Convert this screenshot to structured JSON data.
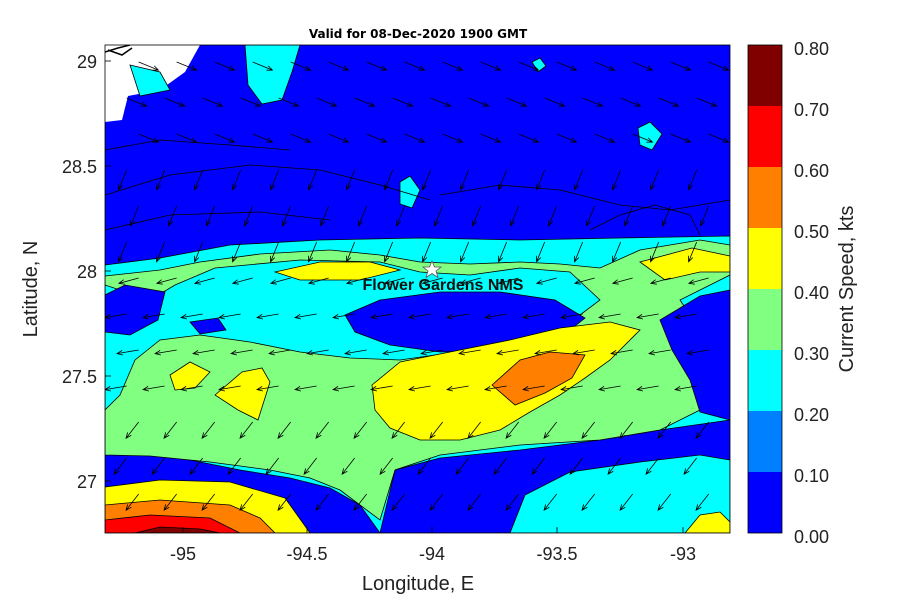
{
  "title": "Valid for 08-Dec-2020 1900 GMT",
  "chart_data": {
    "type": "heatmap",
    "title": "Valid for 08-Dec-2020 1900 GMT",
    "xlabel": "Longitude, E",
    "ylabel": "Latitude, N",
    "xlim": [
      -95.3,
      -92.85
    ],
    "ylim": [
      26.75,
      29.1
    ],
    "x_ticks": [
      "-95",
      "-94.5",
      "-94",
      "-93.5",
      "-93"
    ],
    "y_ticks": [
      "27",
      "27.5",
      "28",
      "28.5",
      "29"
    ],
    "x_tick_values": [
      -95,
      -94.5,
      -94,
      -93.5,
      -93
    ],
    "y_tick_values": [
      27,
      27.5,
      28,
      28.5,
      29
    ],
    "colorbar": {
      "label": "Current Speed, kts",
      "ticks": [
        "0.00",
        "0.10",
        "0.20",
        "0.30",
        "0.40",
        "0.50",
        "0.60",
        "0.70",
        "0.80"
      ],
      "levels": [
        0,
        0.1,
        0.2,
        0.3,
        0.4,
        0.5,
        0.6,
        0.7,
        0.8
      ],
      "colors": [
        "#0000ff",
        "#0080ff",
        "#00ffff",
        "#80ff80",
        "#ffff00",
        "#ff8000",
        "#ff0000",
        "#800000"
      ]
    },
    "marker": {
      "label": "Flower Gardens NMS",
      "lon": -94.0,
      "lat": 28.0,
      "symbol": "star"
    }
  }
}
